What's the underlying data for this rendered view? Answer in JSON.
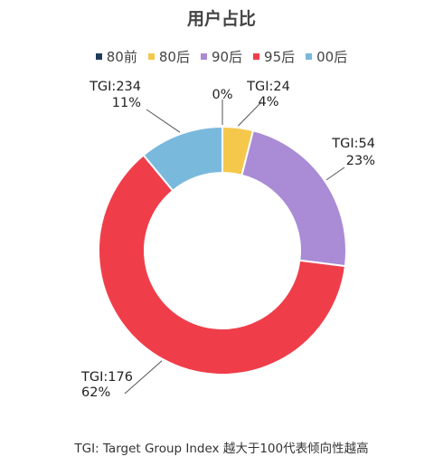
{
  "chart_data": {
    "type": "pie",
    "title": "用户占比",
    "categories": [
      "80前",
      "80后",
      "90后",
      "95后",
      "00后"
    ],
    "values": [
      0,
      4,
      23,
      62,
      11
    ],
    "tgi": [
      "",
      "TGI:24",
      "TGI:54",
      "TGI:176",
      "TGI:234"
    ],
    "pct_labels": [
      "0%",
      "4%",
      "23%",
      "62%",
      "11%"
    ],
    "colors": [
      "#1f3b5a",
      "#f5c84c",
      "#a98bd6",
      "#ef3e4a",
      "#79b9dc"
    ],
    "donut": true,
    "legend_position": "top"
  },
  "footnote": "TGI: Target Group Index 越大于100代表倾向性越高"
}
